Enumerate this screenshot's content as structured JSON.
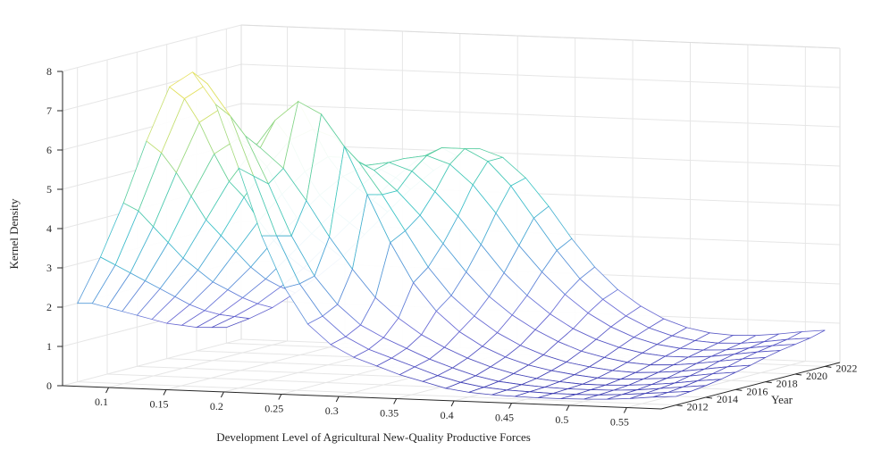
{
  "chart_data": {
    "type": "surface",
    "title": "",
    "xlabel": "Development Level of Agricultural New-Quality Productive Forces",
    "ylabel": "Year",
    "zlabel": "Kernel Density",
    "xlim": [
      0.06,
      0.58
    ],
    "ylim": [
      2011,
      2023
    ],
    "zlim": [
      0,
      8
    ],
    "x_ticks": [
      "0.1",
      "0.15",
      "0.2",
      "0.25",
      "0.3",
      "0.35",
      "0.4",
      "0.45",
      "0.5",
      "0.55"
    ],
    "x_tick_values": [
      0.1,
      0.15,
      0.2,
      0.25,
      0.3,
      0.35,
      0.4,
      0.45,
      0.5,
      0.55
    ],
    "y_ticks": [
      "2012",
      "2014",
      "2016",
      "2018",
      "2020",
      "2022"
    ],
    "y_tick_values": [
      2012,
      2014,
      2016,
      2018,
      2020,
      2022
    ],
    "z_ticks": [
      "0",
      "1",
      "2",
      "3",
      "4",
      "5",
      "6",
      "7",
      "8"
    ],
    "z_tick_values": [
      0,
      1,
      2,
      3,
      4,
      5,
      6,
      7,
      8
    ],
    "grid": true,
    "colormap": [
      "#3b3bb0",
      "#7070d8",
      "#4fa0d8",
      "#3ac4c8",
      "#5dcf9a",
      "#c8e070",
      "#f2e050"
    ],
    "years": [
      2012,
      2013,
      2014,
      2015,
      2016,
      2017,
      2018,
      2019,
      2020,
      2021,
      2022
    ],
    "x_grid": [
      0.06,
      0.08,
      0.1,
      0.12,
      0.14,
      0.16,
      0.18,
      0.2,
      0.22,
      0.24,
      0.26,
      0.28,
      0.3,
      0.32,
      0.34,
      0.36,
      0.38,
      0.4,
      0.42,
      0.44,
      0.46,
      0.48,
      0.5,
      0.52,
      0.54,
      0.56,
      0.58
    ],
    "density": [
      [
        2.0,
        3.2,
        4.6,
        6.2,
        7.6,
        8.0,
        7.2,
        5.6,
        3.9,
        2.6,
        1.7,
        1.2,
        0.9,
        0.7,
        0.5,
        0.35,
        0.2,
        0.12,
        0.08,
        0.06,
        0.05,
        0.05,
        0.06,
        0.08,
        0.12,
        0.18,
        0.22
      ],
      [
        1.9,
        2.9,
        4.3,
        5.8,
        7.2,
        7.6,
        6.8,
        5.3,
        3.8,
        2.6,
        1.8,
        1.3,
        1.0,
        0.8,
        0.6,
        0.4,
        0.25,
        0.15,
        0.1,
        0.08,
        0.06,
        0.06,
        0.07,
        0.1,
        0.15,
        0.2,
        0.25
      ],
      [
        1.7,
        2.6,
        3.8,
        5.2,
        6.5,
        6.9,
        6.2,
        5.0,
        3.7,
        2.7,
        2.0,
        1.5,
        1.2,
        0.95,
        0.7,
        0.5,
        0.32,
        0.2,
        0.14,
        0.1,
        0.08,
        0.08,
        0.09,
        0.12,
        0.18,
        0.24,
        0.3
      ],
      [
        1.5,
        2.3,
        3.3,
        4.5,
        5.6,
        6.0,
        5.8,
        5.3,
        4.5,
        3.6,
        2.8,
        2.1,
        1.6,
        1.2,
        0.9,
        0.65,
        0.45,
        0.3,
        0.2,
        0.14,
        0.1,
        0.1,
        0.12,
        0.16,
        0.22,
        0.3,
        0.36
      ],
      [
        1.3,
        2.0,
        2.8,
        3.8,
        4.8,
        5.6,
        6.4,
        6.9,
        6.6,
        5.8,
        4.6,
        3.4,
        2.4,
        1.7,
        1.2,
        0.85,
        0.6,
        0.42,
        0.3,
        0.22,
        0.16,
        0.15,
        0.18,
        0.22,
        0.3,
        0.38,
        0.44
      ],
      [
        1.1,
        1.7,
        2.4,
        3.3,
        4.3,
        5.1,
        5.8,
        6.1,
        5.9,
        5.3,
        4.5,
        3.6,
        2.7,
        2.0,
        1.5,
        1.1,
        0.8,
        0.58,
        0.42,
        0.32,
        0.25,
        0.22,
        0.25,
        0.3,
        0.38,
        0.46,
        0.52
      ],
      [
        0.9,
        1.4,
        2.0,
        2.8,
        3.6,
        4.3,
        4.9,
        5.3,
        5.3,
        5.0,
        4.5,
        3.9,
        3.2,
        2.5,
        1.9,
        1.45,
        1.1,
        0.82,
        0.6,
        0.46,
        0.36,
        0.32,
        0.34,
        0.4,
        0.48,
        0.56,
        0.62
      ],
      [
        0.75,
        1.15,
        1.7,
        2.3,
        3.0,
        3.6,
        4.2,
        4.7,
        5.0,
        5.1,
        4.9,
        4.4,
        3.8,
        3.1,
        2.4,
        1.85,
        1.4,
        1.05,
        0.8,
        0.62,
        0.5,
        0.44,
        0.44,
        0.48,
        0.56,
        0.64,
        0.7
      ],
      [
        0.6,
        0.95,
        1.4,
        1.9,
        2.5,
        3.1,
        3.7,
        4.3,
        4.8,
        5.1,
        5.2,
        5.0,
        4.5,
        3.8,
        3.0,
        2.35,
        1.8,
        1.35,
        1.02,
        0.78,
        0.62,
        0.54,
        0.52,
        0.55,
        0.62,
        0.7,
        0.76
      ],
      [
        0.5,
        0.8,
        1.15,
        1.6,
        2.1,
        2.7,
        3.3,
        3.9,
        4.5,
        5.0,
        5.3,
        5.3,
        5.0,
        4.4,
        3.6,
        2.8,
        2.1,
        1.6,
        1.2,
        0.92,
        0.74,
        0.64,
        0.6,
        0.62,
        0.68,
        0.76,
        0.82
      ],
      [
        0.4,
        0.65,
        0.95,
        1.35,
        1.8,
        2.3,
        2.9,
        3.5,
        4.1,
        4.6,
        5.0,
        5.2,
        5.0,
        4.5,
        3.8,
        3.0,
        2.3,
        1.75,
        1.35,
        1.05,
        0.85,
        0.74,
        0.7,
        0.72,
        0.78,
        0.86,
        0.92
      ]
    ]
  }
}
